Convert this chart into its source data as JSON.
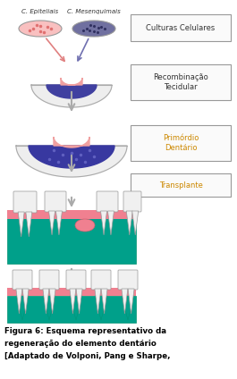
{
  "title_line1": "Figura 6: Esquema representativo da",
  "title_line2": "regeneração do elemento dentário",
  "title_line3": "[Adaptado de Volponi, Pang e Sharpe,",
  "bg_color": "#ffffff",
  "box_texts": [
    "Culturas Celulares",
    "Recombinação\nTecidular",
    "Primórdio\nDentário",
    "Transplante"
  ],
  "label_left1": "C. Epiteliais",
  "label_left2": "C. Mesenquimais",
  "dish1_color": "#F9C0C0",
  "dish2_color": "#7070A0",
  "dot1_color": "#E07070",
  "dot2_color": "#303060",
  "cell_outer": "#EEEEEE",
  "cell_inner": "#4040A0",
  "cell_pink": "#F0A0A0",
  "cell2_inner": "#3838A0",
  "cell2_dot": "#6060C0",
  "teal_color": "#00A08A",
  "gum_color": "#F08090",
  "tooth_color": "#F0F0F0",
  "tooth_edge": "#999999",
  "arrow_color": "#AAAAAA",
  "arr1_color": "#E08080",
  "arr2_color": "#7070B0",
  "box_face": "#FAFAFA",
  "box_edge": "#999999",
  "text_color": "#333333",
  "gold_color": "#CC8800",
  "caption_color": "#000000"
}
